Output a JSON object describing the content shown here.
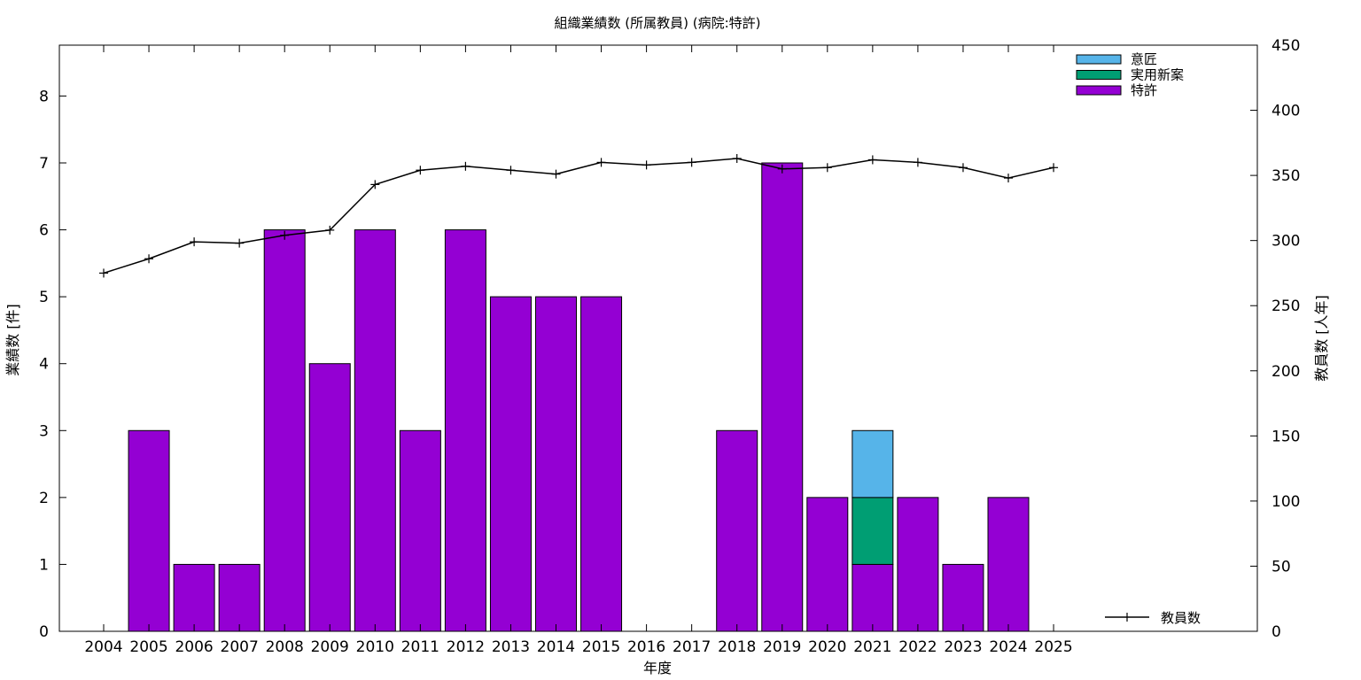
{
  "chart_data": {
    "type": "bar",
    "title": "組織業績数 (所属教員) (病院:特許)",
    "xlabel": "年度",
    "ylabel": "業績数 [件]",
    "y2label": "教員数 [人年]",
    "categories": [
      "2004",
      "2005",
      "2006",
      "2007",
      "2008",
      "2009",
      "2010",
      "2011",
      "2012",
      "2013",
      "2014",
      "2015",
      "2016",
      "2017",
      "2018",
      "2019",
      "2020",
      "2021",
      "2022",
      "2023",
      "2024",
      "2025"
    ],
    "stacked": true,
    "series": [
      {
        "name": "特許",
        "color": "#9400d3",
        "values": [
          0,
          3,
          1,
          1,
          6,
          4,
          6,
          3,
          6,
          5,
          5,
          5,
          0,
          0,
          3,
          7,
          2,
          1,
          2,
          1,
          2,
          0
        ]
      },
      {
        "name": "実用新案",
        "color": "#009e73",
        "values": [
          0,
          0,
          0,
          0,
          0,
          0,
          0,
          0,
          0,
          0,
          0,
          0,
          0,
          0,
          0,
          0,
          0,
          1,
          0,
          0,
          0,
          0
        ]
      },
      {
        "name": "意匠",
        "color": "#56b4e9",
        "values": [
          0,
          0,
          0,
          0,
          0,
          0,
          0,
          0,
          0,
          0,
          0,
          0,
          0,
          0,
          0,
          0,
          0,
          1,
          0,
          0,
          0,
          0
        ]
      }
    ],
    "line_series": {
      "name": "教員数",
      "color": "#000000",
      "axis": "right",
      "values": [
        275,
        286,
        299,
        298,
        304,
        308,
        343,
        354,
        357,
        354,
        351,
        360,
        358,
        360,
        363,
        355,
        356,
        362,
        360,
        356,
        348,
        356
      ]
    },
    "ylim": [
      0,
      8.76
    ],
    "yticks": [
      0,
      1,
      2,
      3,
      4,
      5,
      6,
      7,
      8
    ],
    "y2lim": [
      0,
      450
    ],
    "y2ticks": [
      0,
      50,
      100,
      150,
      200,
      250,
      300,
      350,
      400,
      450
    ],
    "grid": false,
    "legend_position": "top-right",
    "line_legend_position": "bottom-right"
  }
}
